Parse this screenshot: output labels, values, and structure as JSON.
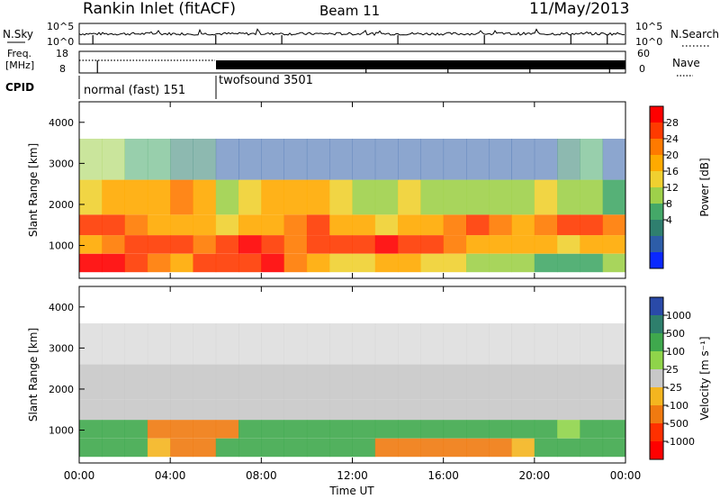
{
  "header": {
    "station": "Rankin Inlet (fitACF)",
    "beam": "Beam 11",
    "date": "11/May/2013"
  },
  "panels": {
    "nsky": {
      "label": "N.Sky",
      "ticks": [
        "10^5",
        "10^0"
      ]
    },
    "nsearch": {
      "label": "N.Search",
      "ticks": [
        "10^5",
        "10^0"
      ]
    },
    "freq": {
      "label_top": "Freq.",
      "label_unit": "[MHz]",
      "ticks": [
        "18",
        "8"
      ]
    },
    "nave": {
      "label": "Nave",
      "ticks": [
        "60",
        "0"
      ]
    },
    "cpid": {
      "label": "CPID",
      "segments": [
        {
          "name": "normal (fast) 151",
          "start_hour": 0,
          "end_hour": 6
        },
        {
          "name": "twofsound 3501",
          "start_hour": 6,
          "end_hour": 24
        }
      ]
    }
  },
  "axes": {
    "slant_label": "Slant Range [km]",
    "slant_ticks": [
      "4000",
      "3000",
      "2000",
      "1000"
    ],
    "x_ticks": [
      "00:00",
      "04:00",
      "08:00",
      "12:00",
      "16:00",
      "20:00",
      "00:00"
    ],
    "x_label": "Time UT"
  },
  "colorbars": {
    "power": {
      "label": "Power [dB]",
      "ticks": [
        "28",
        "24",
        "20",
        "16",
        "12",
        "8",
        "4"
      ],
      "colors": [
        "#ff0000",
        "#ff3a00",
        "#ff7a00",
        "#ffaa00",
        "#f0d030",
        "#9ed04a",
        "#44a868",
        "#2f7f6f",
        "#2d5da8",
        "#0a28ff"
      ]
    },
    "velocity": {
      "label": "Velocity [m s⁻¹]",
      "ticks": [
        "1000",
        "500",
        "100",
        "25",
        "-25",
        "-100",
        "-500",
        "-1000"
      ],
      "colors": [
        "#2a4aa8",
        "#2e7f6c",
        "#3fa84d",
        "#8fd44a",
        "#c8c8c8",
        "#f4b51f",
        "#f07a10",
        "#ff3000",
        "#ff0000"
      ]
    }
  },
  "chart_data": [
    {
      "type": "heatmap",
      "title": "Power [dB]",
      "xlabel": "",
      "ylabel": "Slant Range [km]",
      "xlim": [
        0,
        24
      ],
      "ylim": [
        200,
        4500
      ],
      "zlim": [
        0,
        32
      ],
      "x": [
        0,
        1,
        2,
        3,
        4,
        5,
        6,
        7,
        8,
        9,
        10,
        11,
        12,
        13,
        14,
        15,
        16,
        17,
        18,
        19,
        20,
        21,
        22,
        23
      ],
      "y": [
        600,
        1000,
        1500,
        2000,
        3200
      ],
      "z": [
        [
          30,
          30,
          28,
          24,
          22,
          26,
          28,
          28,
          30,
          24,
          20,
          18,
          18,
          20,
          20,
          18,
          18,
          16,
          14,
          14,
          12,
          10,
          12,
          14
        ],
        [
          22,
          24,
          26,
          28,
          26,
          24,
          28,
          30,
          26,
          24,
          26,
          28,
          28,
          30,
          28,
          26,
          24,
          22,
          22,
          20,
          20,
          18,
          20,
          22
        ],
        [
          26,
          28,
          24,
          22,
          20,
          20,
          18,
          20,
          22,
          24,
          26,
          22,
          20,
          18,
          20,
          22,
          24,
          26,
          24,
          22,
          24,
          26,
          26,
          24
        ],
        [
          18,
          20,
          20,
          22,
          24,
          20,
          16,
          18,
          20,
          22,
          20,
          18,
          16,
          16,
          18,
          16,
          14,
          14,
          16,
          16,
          18,
          16,
          14,
          12
        ],
        [
          14,
          16,
          12,
          10,
          8,
          8,
          6,
          4,
          4,
          6,
          4,
          4,
          4,
          4,
          6,
          6,
          4,
          4,
          4,
          4,
          4,
          8,
          10,
          6
        ]
      ]
    },
    {
      "type": "heatmap",
      "title": "Velocity [m s⁻¹]",
      "xlabel": "Time UT",
      "ylabel": "Slant Range [km]",
      "xlim": [
        0,
        24
      ],
      "ylim": [
        200,
        4500
      ],
      "zlim": [
        -1000,
        1000
      ],
      "x": [
        0,
        1,
        2,
        3,
        4,
        5,
        6,
        7,
        8,
        9,
        10,
        11,
        12,
        13,
        14,
        15,
        16,
        17,
        18,
        19,
        20,
        21,
        22,
        23
      ],
      "y": [
        600,
        1000,
        1500,
        2000,
        3200
      ],
      "z": [
        [
          100,
          100,
          100,
          -100,
          -300,
          -200,
          100,
          100,
          100,
          100,
          100,
          100,
          200,
          -300,
          -300,
          -300,
          -300,
          -300,
          -200,
          -100,
          100,
          100,
          100,
          100
        ],
        [
          100,
          100,
          200,
          -300,
          -500,
          -500,
          -300,
          100,
          200,
          200,
          200,
          150,
          100,
          100,
          100,
          100,
          150,
          200,
          200,
          100,
          100,
          50,
          100,
          100
        ],
        [
          0,
          0,
          0,
          0,
          0,
          0,
          0,
          0,
          0,
          0,
          0,
          0,
          0,
          0,
          0,
          0,
          0,
          0,
          0,
          0,
          0,
          0,
          0,
          0
        ],
        [
          0,
          0,
          0,
          0,
          0,
          0,
          0,
          0,
          0,
          0,
          0,
          0,
          0,
          0,
          0,
          0,
          0,
          0,
          0,
          0,
          0,
          0,
          0,
          0
        ],
        [
          0,
          0,
          0,
          0,
          0,
          0,
          0,
          0,
          0,
          0,
          0,
          0,
          0,
          0,
          0,
          0,
          0,
          0,
          0,
          0,
          0,
          0,
          0,
          0
        ]
      ]
    }
  ]
}
